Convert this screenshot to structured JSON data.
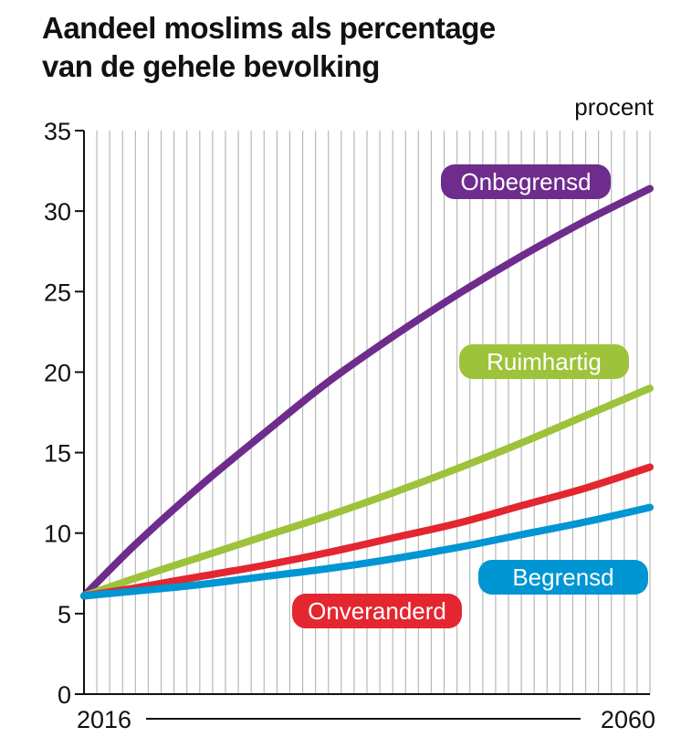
{
  "chart_data": {
    "type": "line",
    "title_lines": [
      "Aandeel moslims als percentage",
      "van de gehele bevolking"
    ],
    "unit_label": "procent",
    "x_range": [
      2016,
      2060
    ],
    "x_tick_labels": [
      "2016",
      "2060"
    ],
    "ylim": [
      0,
      35
    ],
    "y_ticks": [
      0,
      5,
      10,
      15,
      20,
      25,
      30,
      35
    ],
    "grid": "vertical",
    "series": [
      {
        "name": "Onbegrensd",
        "color": "#6e2c8c",
        "x": [
          2016,
          2020,
          2025,
          2030,
          2035,
          2040,
          2045,
          2050,
          2055,
          2060
        ],
        "values": [
          6.1,
          9.3,
          12.9,
          16.2,
          19.4,
          22.2,
          24.8,
          27.2,
          29.4,
          31.4
        ]
      },
      {
        "name": "Ruimhartig",
        "color": "#9dc33a",
        "x": [
          2016,
          2020,
          2025,
          2030,
          2035,
          2040,
          2045,
          2050,
          2055,
          2060
        ],
        "values": [
          6.1,
          7.2,
          8.5,
          9.8,
          11.1,
          12.5,
          14.0,
          15.6,
          17.3,
          19.0
        ]
      },
      {
        "name": "Onveranderd",
        "color": "#e3262f",
        "x": [
          2016,
          2020,
          2025,
          2030,
          2035,
          2040,
          2045,
          2050,
          2055,
          2060
        ],
        "values": [
          6.1,
          6.6,
          7.3,
          8.0,
          8.8,
          9.7,
          10.6,
          11.7,
          12.8,
          14.1
        ]
      },
      {
        "name": "Begrensd",
        "color": "#0095d3",
        "x": [
          2016,
          2020,
          2025,
          2030,
          2035,
          2040,
          2045,
          2050,
          2055,
          2060
        ],
        "values": [
          6.1,
          6.4,
          6.8,
          7.3,
          7.8,
          8.4,
          9.1,
          9.9,
          10.7,
          11.6
        ]
      }
    ]
  }
}
